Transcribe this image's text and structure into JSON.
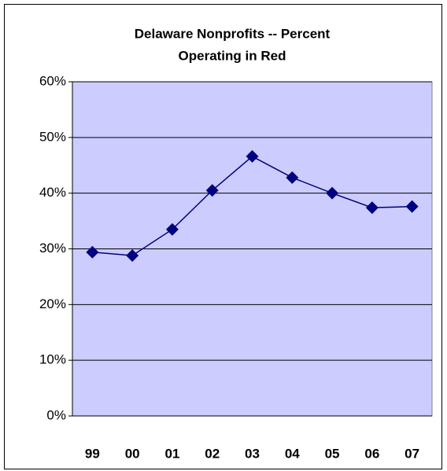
{
  "chart_data": {
    "type": "line",
    "title": [
      "Delaware Nonprofits -- Percent",
      "Operating in Red"
    ],
    "categories": [
      "99",
      "00",
      "01",
      "02",
      "03",
      "04",
      "05",
      "06",
      "07"
    ],
    "series": [
      {
        "name": "Percent Operating in Red",
        "color": "#000080",
        "values": [
          29.4,
          28.8,
          33.5,
          40.5,
          46.6,
          42.8,
          40.0,
          37.4,
          37.6
        ]
      }
    ],
    "ylim": [
      0,
      60
    ],
    "yticks": [
      {
        "value": 0,
        "label": "0%"
      },
      {
        "value": 10,
        "label": "10%"
      },
      {
        "value": 20,
        "label": "20%"
      },
      {
        "value": 30,
        "label": "30%"
      },
      {
        "value": 40,
        "label": "40%"
      },
      {
        "value": 50,
        "label": "50%"
      },
      {
        "value": 60,
        "label": "60%"
      }
    ],
    "grid": true,
    "plot_background": "#ccccff"
  }
}
